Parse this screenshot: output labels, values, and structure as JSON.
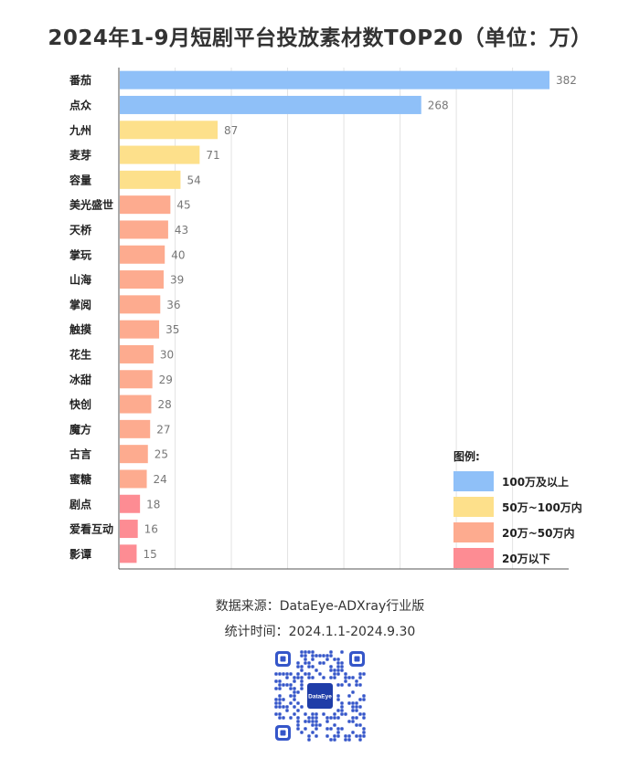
{
  "title": "2024年1-9月短剧平台投放素材数TOP20（单位：万）",
  "chart_data": {
    "type": "bar",
    "orientation": "horizontal",
    "title": "2024年1-9月短剧平台投放素材数TOP20（单位：万）",
    "xlabel": "",
    "ylabel": "",
    "xlim": [
      0,
      390
    ],
    "grid": true,
    "categories": [
      "番茄",
      "点众",
      "九州",
      "麦芽",
      "容量",
      "美光盛世",
      "天桥",
      "掌玩",
      "山海",
      "掌阅",
      "触摸",
      "花生",
      "冰甜",
      "快创",
      "魔方",
      "古言",
      "蜜糖",
      "剧点",
      "爱看互动",
      "影谭"
    ],
    "values": [
      382,
      268,
      87,
      71,
      54,
      45,
      43,
      40,
      39,
      36,
      35,
      30,
      29,
      28,
      27,
      25,
      24,
      18,
      16,
      15
    ],
    "tiers": [
      "t1",
      "t1",
      "t2",
      "t2",
      "t2",
      "t3",
      "t3",
      "t3",
      "t3",
      "t3",
      "t3",
      "t3",
      "t3",
      "t3",
      "t3",
      "t3",
      "t3",
      "t4",
      "t4",
      "t4"
    ],
    "colors": {
      "t1": "#8fc0f8",
      "t2": "#fde08b",
      "t3": "#fdab8f",
      "t4": "#fd8c93"
    },
    "legend": {
      "title": "图例:",
      "position": "bottom-right",
      "items": [
        {
          "label": "100万及以上",
          "color": "#8fc0f8"
        },
        {
          "label": "50万~100万内",
          "color": "#fde08b"
        },
        {
          "label": "20万~50万内",
          "color": "#fdab8f"
        },
        {
          "label": "20万以下",
          "color": "#fd8c93"
        }
      ]
    }
  },
  "source": {
    "line1": "数据来源：DataEye-ADXray行业版",
    "line2": "统计时间：2024.1.1-2024.9.30"
  },
  "qr_center_text": "DataEye"
}
